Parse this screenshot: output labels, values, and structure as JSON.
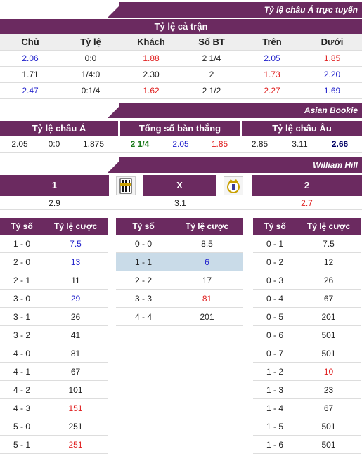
{
  "section1": {
    "banner": "Tỷ lệ châu Á trực tuyến",
    "title": "Tỷ lệ cả trận",
    "headers": [
      "Chủ",
      "Tỷ lệ",
      "Khách",
      "Số BT",
      "Trên",
      "Dưới"
    ],
    "rows": [
      [
        "2.06",
        "0:0",
        "1.88",
        "2 1/4",
        "2.05",
        "1.85"
      ],
      [
        "1.71",
        "1/4:0",
        "2.30",
        "2",
        "1.73",
        "2.20"
      ],
      [
        "2.47",
        "0:1/4",
        "1.62",
        "2 1/2",
        "2.27",
        "1.69"
      ]
    ]
  },
  "section2": {
    "banner": "Asian Bookie",
    "headers": [
      "Tỷ lệ châu Á",
      "Tổng số bàn thắng",
      "Tỷ lệ châu Âu"
    ],
    "values": [
      "2.05",
      "0:0",
      "1.875",
      "2 1/4",
      "2.05",
      "1.85",
      "2.85",
      "3.11",
      "2.66"
    ]
  },
  "section3": {
    "banner": "William Hill",
    "labels": [
      "1",
      "X",
      "2"
    ],
    "values": [
      "2.9",
      "3.1",
      "2.7"
    ]
  },
  "scores": {
    "col_score": "Tỷ số",
    "col_odds": "Tỷ lệ cược",
    "home": [
      [
        "1 - 0",
        "7.5"
      ],
      [
        "2 - 0",
        "13"
      ],
      [
        "2 - 1",
        "11"
      ],
      [
        "3 - 0",
        "29"
      ],
      [
        "3 - 1",
        "26"
      ],
      [
        "3 - 2",
        "41"
      ],
      [
        "4 - 0",
        "81"
      ],
      [
        "4 - 1",
        "67"
      ],
      [
        "4 - 2",
        "101"
      ],
      [
        "4 - 3",
        "151"
      ],
      [
        "5 - 0",
        "251"
      ],
      [
        "5 - 1",
        "251"
      ]
    ],
    "draw": [
      [
        "0 - 0",
        "8.5"
      ],
      [
        "1 - 1",
        "6"
      ],
      [
        "2 - 2",
        "17"
      ],
      [
        "3 - 3",
        "81"
      ],
      [
        "4 - 4",
        "201"
      ]
    ],
    "away": [
      [
        "0 - 1",
        "7.5"
      ],
      [
        "0 - 2",
        "12"
      ],
      [
        "0 - 3",
        "26"
      ],
      [
        "0 - 4",
        "67"
      ],
      [
        "0 - 5",
        "201"
      ],
      [
        "0 - 6",
        "501"
      ],
      [
        "0 - 7",
        "501"
      ],
      [
        "1 - 2",
        "10"
      ],
      [
        "1 - 3",
        "23"
      ],
      [
        "1 - 4",
        "67"
      ],
      [
        "1 - 5",
        "501"
      ],
      [
        "1 - 6",
        "501"
      ]
    ]
  },
  "colors": {
    "accent": "#6b2a60",
    "blue": "#2222cc",
    "red": "#e02020",
    "green": "#1a7a1a",
    "highlight": "#c9dbe8"
  },
  "icons": {
    "home_logo": "juventus-logo-icon",
    "away_logo": "real-madrid-logo-icon"
  }
}
